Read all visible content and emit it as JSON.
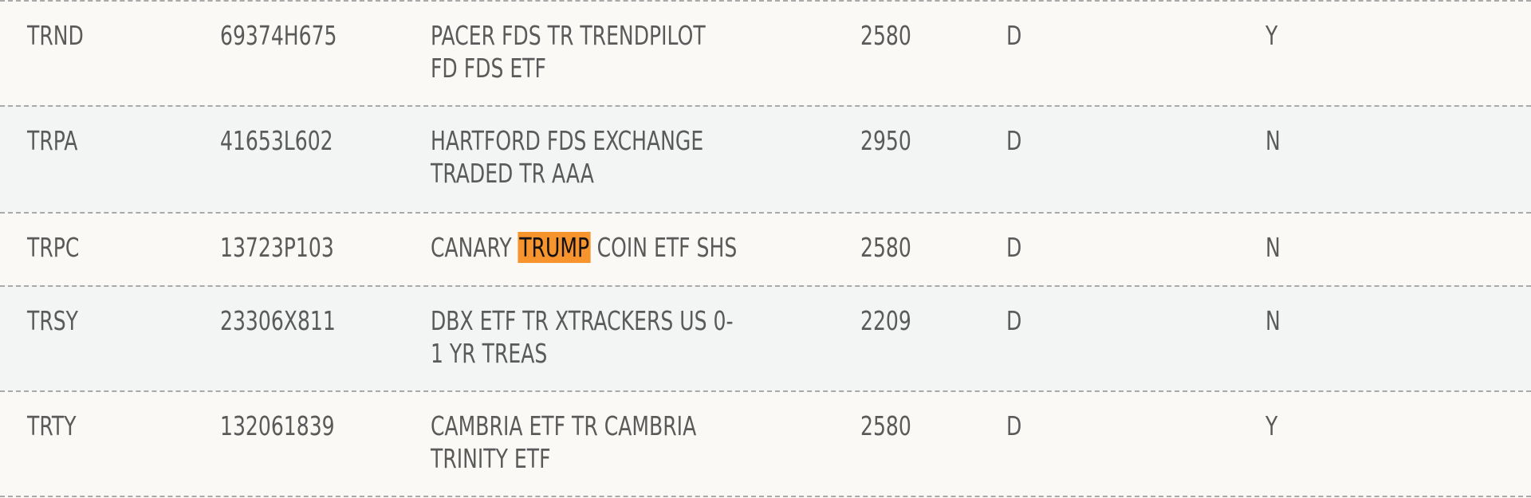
{
  "colors": {
    "highlight": "#f7942d",
    "text": "#5a5a5a",
    "row_odd": "#faf9f6",
    "row_even": "#f3f4f4"
  },
  "rows": [
    {
      "symbol": "TRND",
      "cusip": "69374H675",
      "name_lines": [
        "PACER FDS TR TRENDPILOT",
        "FD FDS ETF"
      ],
      "code": "2580",
      "type": "D",
      "flag": "Y"
    },
    {
      "symbol": "TRPA",
      "cusip": "41653L602",
      "name_lines": [
        "HARTFORD FDS EXCHANGE",
        "TRADED TR AAA"
      ],
      "code": "2950",
      "type": "D",
      "flag": "N"
    },
    {
      "symbol": "TRPC",
      "cusip": "13723P103",
      "name_before": "CANARY ",
      "name_highlight": "TRUMP",
      "name_after": " COIN ETF SHS",
      "code": "2580",
      "type": "D",
      "flag": "N"
    },
    {
      "symbol": "TRSY",
      "cusip": "23306X811",
      "name_lines": [
        "DBX ETF TR XTRACKERS US 0-",
        "1 YR TREAS"
      ],
      "code": "2209",
      "type": "D",
      "flag": "N"
    },
    {
      "symbol": "TRTY",
      "cusip": "132061839",
      "name_lines": [
        "CAMBRIA ETF TR CAMBRIA",
        "TRINITY ETF"
      ],
      "code": "2580",
      "type": "D",
      "flag": "Y"
    }
  ]
}
